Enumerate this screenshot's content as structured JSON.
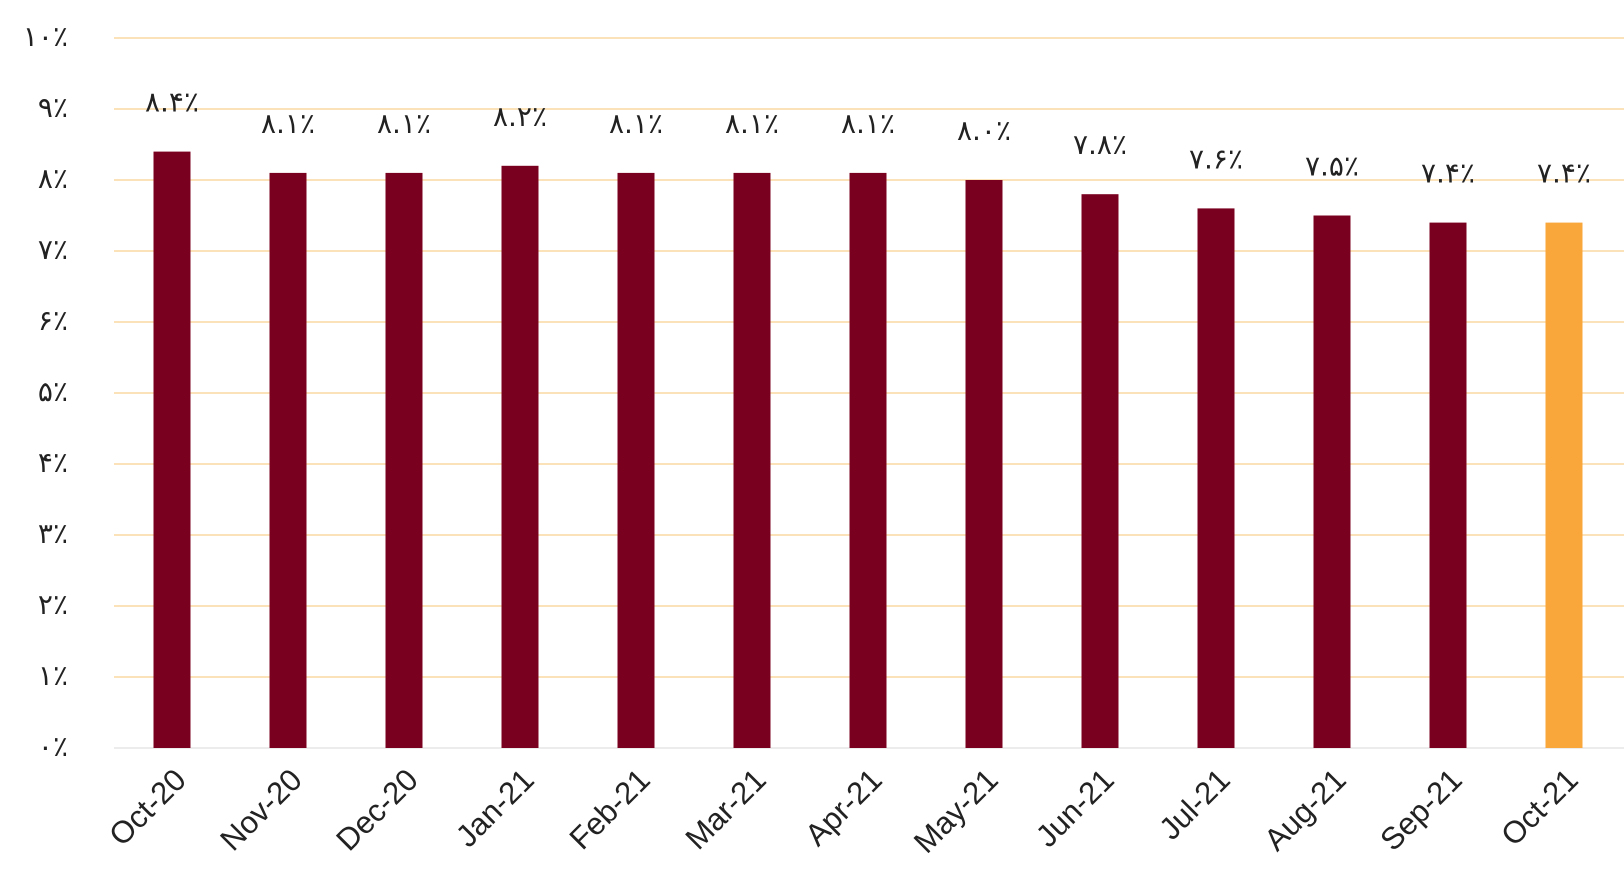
{
  "chart_data": {
    "type": "bar",
    "categories": [
      "Oct-20",
      "Nov-20",
      "Dec-20",
      "Jan-21",
      "Feb-21",
      "Mar-21",
      "Apr-21",
      "May-21",
      "Jun-21",
      "Jul-21",
      "Aug-21",
      "Sep-21",
      "Oct-21"
    ],
    "values": [
      8.4,
      8.1,
      8.1,
      8.2,
      8.1,
      8.1,
      8.1,
      8.0,
      7.8,
      7.6,
      7.5,
      7.4,
      7.4
    ],
    "value_labels": [
      "۸.۴٪",
      "۸.۱٪",
      "۸.۱٪",
      "۸.۲٪",
      "۸.۱٪",
      "۸.۱٪",
      "۸.۱٪",
      "۸.۰٪",
      "۷.۸٪",
      "۷.۶٪",
      "۷.۵٪",
      "۷.۴٪",
      "۷.۴٪"
    ],
    "colors": [
      "#7a001f",
      "#7a001f",
      "#7a001f",
      "#7a001f",
      "#7a001f",
      "#7a001f",
      "#7a001f",
      "#7a001f",
      "#7a001f",
      "#7a001f",
      "#7a001f",
      "#7a001f",
      "#f9a63b"
    ],
    "ylim": [
      0,
      10
    ],
    "yticks": [
      {
        "value": 0,
        "label": "۰٪"
      },
      {
        "value": 1,
        "label": "۱٪"
      },
      {
        "value": 2,
        "label": "۲٪"
      },
      {
        "value": 3,
        "label": "۳٪"
      },
      {
        "value": 4,
        "label": "۴٪"
      },
      {
        "value": 5,
        "label": "۵٪"
      },
      {
        "value": 6,
        "label": "۶٪"
      },
      {
        "value": 7,
        "label": "۷٪"
      },
      {
        "value": 8,
        "label": "۸٪"
      },
      {
        "value": 9,
        "label": "۹٪"
      },
      {
        "value": 10,
        "label": "۱۰٪"
      }
    ],
    "grid": true
  }
}
